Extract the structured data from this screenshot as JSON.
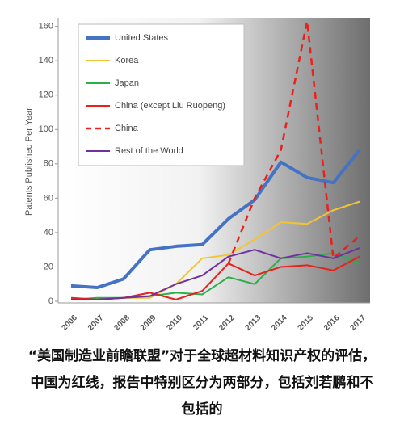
{
  "chart_data": {
    "type": "line",
    "y_label": "Patents Published Per Year",
    "categories": [
      "2006",
      "2007",
      "2008",
      "2009",
      "2010",
      "2011",
      "2012",
      "2013",
      "2014",
      "2015",
      "2016",
      "2017"
    ],
    "ylim": [
      0,
      165
    ],
    "yticks": [
      0,
      20,
      40,
      60,
      80,
      100,
      120,
      140,
      160
    ],
    "series": [
      {
        "name": "United States",
        "color": "#4472c4",
        "line_width": 4,
        "dashed": false,
        "values": [
          9,
          8,
          13,
          30,
          32,
          33,
          48,
          59,
          81,
          72,
          69,
          88
        ]
      },
      {
        "name": "Korea",
        "color": "#f4c430",
        "line_width": 2,
        "dashed": false,
        "values": [
          2,
          1,
          2,
          2,
          10,
          25,
          27,
          36,
          46,
          45,
          53,
          58
        ]
      },
      {
        "name": "Japan",
        "color": "#2ab04a",
        "line_width": 2,
        "dashed": false,
        "values": [
          1,
          2,
          2,
          3,
          5,
          4,
          14,
          10,
          25,
          26,
          28,
          22
        ]
      },
      {
        "name": "China (except Liu Ruopeng)",
        "color": "#e8211c",
        "line_width": 2,
        "dashed": false,
        "values": [
          2,
          1,
          2,
          5,
          1,
          6,
          22,
          15,
          20,
          21,
          18,
          26
        ]
      },
      {
        "name": "China",
        "color": "#e8211c",
        "line_width": 2.5,
        "dashed": true,
        "values": [
          null,
          null,
          null,
          null,
          null,
          null,
          22,
          60,
          88,
          163,
          25,
          38
        ]
      },
      {
        "name": "Rest of the World",
        "color": "#7030a0",
        "line_width": 2,
        "dashed": false,
        "values": [
          1,
          1,
          2,
          3,
          10,
          15,
          26,
          30,
          25,
          28,
          25,
          31
        ]
      }
    ]
  },
  "caption": "“美国制造业前瞻联盟”对于全球超材料知识产权的评估，中国为红线，报告中特别区分为两部分，包括刘若鹏和不包括的"
}
